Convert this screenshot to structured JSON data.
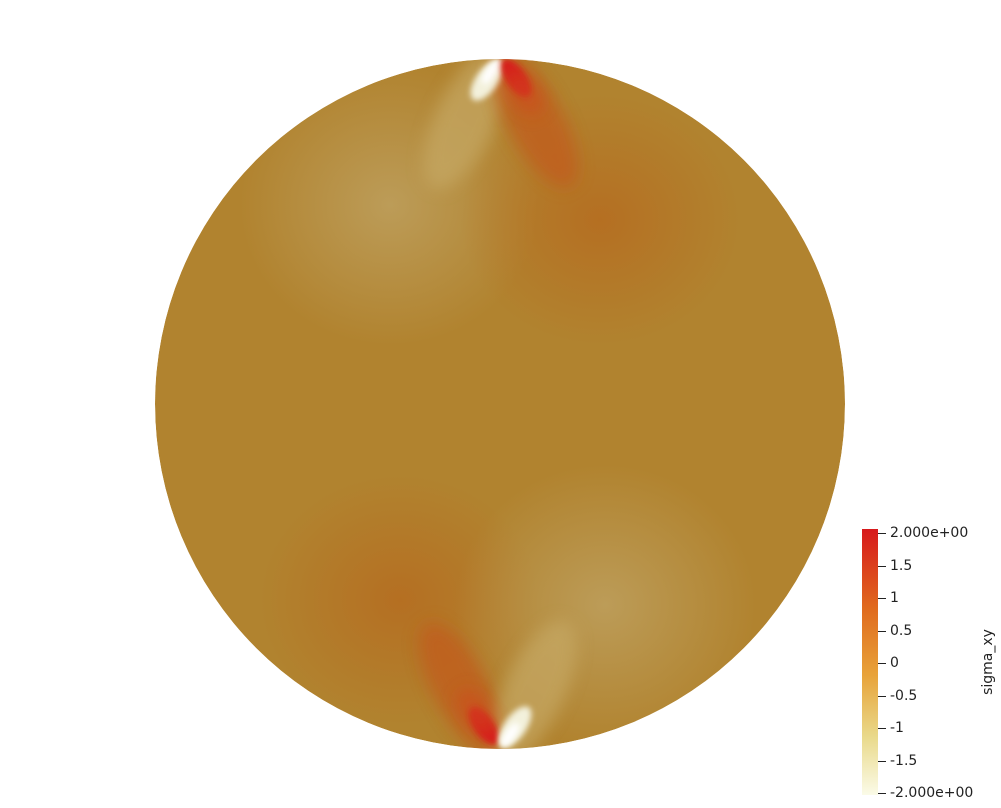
{
  "colorbar": {
    "title": "sigma_xy",
    "ticks": [
      {
        "value": 2.0,
        "label": "2.000e+00"
      },
      {
        "value": 1.5,
        "label": "1.5"
      },
      {
        "value": 1.0,
        "label": "1"
      },
      {
        "value": 0.5,
        "label": "0.5"
      },
      {
        "value": 0.0,
        "label": "0"
      },
      {
        "value": -0.5,
        "label": "-0.5"
      },
      {
        "value": -1.0,
        "label": "-1"
      },
      {
        "value": -1.5,
        "label": "-1.5"
      },
      {
        "value": -2.0,
        "label": "-2.000e+00"
      }
    ],
    "range": [
      -2.0,
      2.0
    ],
    "colors": {
      "max": "#d7191c",
      "high": "#e06b1e",
      "mid": "#e8a33a",
      "low": "#e9d98a",
      "min": "#fbfbe8"
    }
  },
  "field": {
    "background_color": "#b1832f",
    "regions": [
      {
        "quadrant": "upper-left",
        "value": -0.4
      },
      {
        "quadrant": "upper-right",
        "value": 0.4
      },
      {
        "quadrant": "lower-left",
        "value": 0.4
      },
      {
        "quadrant": "lower-right",
        "value": -0.4
      }
    ],
    "hotspots": [
      {
        "location": "top",
        "negative_side": "left",
        "positive_side": "right"
      },
      {
        "location": "bottom",
        "negative_side": "right",
        "positive_side": "left"
      }
    ]
  }
}
